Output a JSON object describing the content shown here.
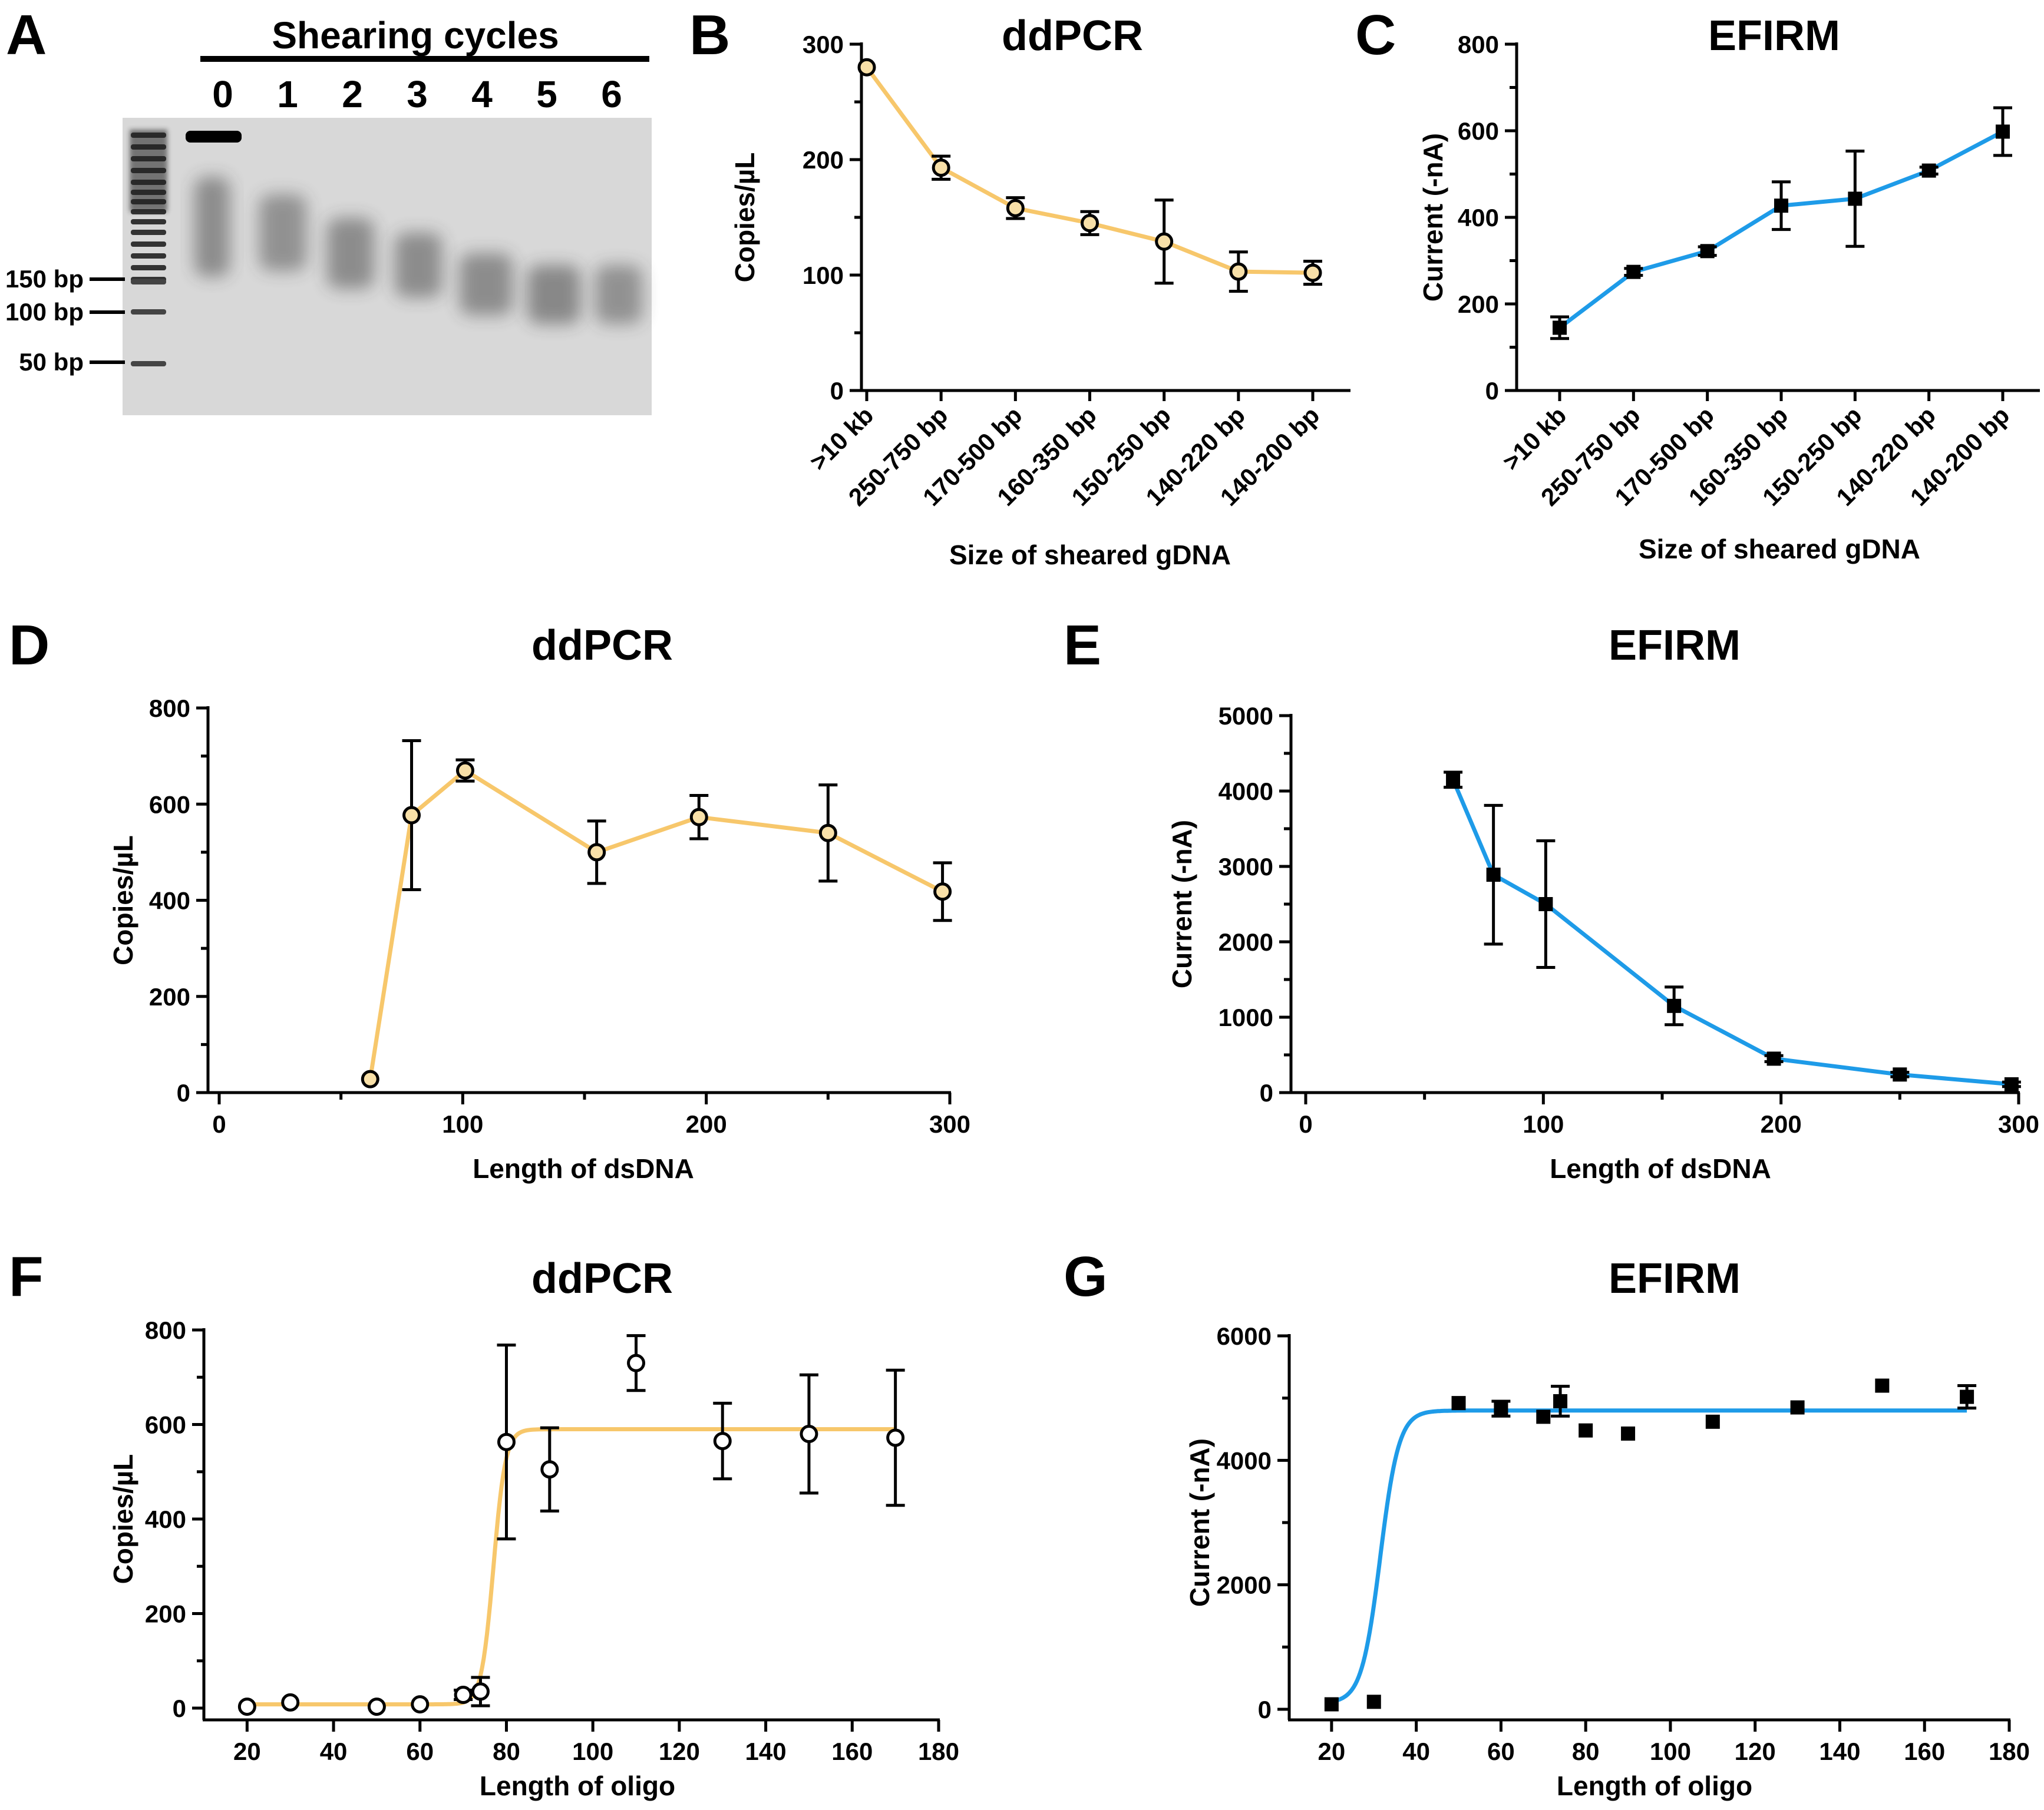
{
  "colors": {
    "orange": "#F7C76B",
    "blue": "#1E9BE8",
    "gel_bg": "#D8D8D8",
    "marker": "#000000"
  },
  "gel": {
    "label": "A",
    "header": "Shearing cycles",
    "lanes": [
      "0",
      "1",
      "2",
      "3",
      "4",
      "5",
      "6"
    ],
    "ladder_labels": [
      "150 bp",
      "100 bp",
      "50 bp"
    ]
  },
  "chart_data": [
    {
      "panel": "B",
      "type": "line",
      "title": "ddPCR",
      "categories": [
        ">10 kb",
        "250-750 bp",
        "170-500 bp",
        "160-350 bp",
        "150-250 bp",
        "140-220 bp",
        "140-200 bp"
      ],
      "values": [
        280,
        193,
        158,
        145,
        129,
        103,
        102
      ],
      "errors": [
        0,
        10,
        9,
        10,
        36,
        17,
        10
      ],
      "xlabel": "Size of sheared gDNA",
      "ylabel": "Copies/µL",
      "ylim": [
        0,
        300
      ],
      "yticks": [
        0,
        100,
        200,
        300
      ],
      "marker": "circle",
      "color": "#F7C76B"
    },
    {
      "panel": "C",
      "type": "line",
      "title": "EFIRM",
      "categories": [
        ">10 kb",
        "250-750 bp",
        "170-500 bp",
        "160-350 bp",
        "150-250 bp",
        "140-220 bp",
        "140-200 bp"
      ],
      "values": [
        145,
        274,
        322,
        427,
        443,
        508,
        598
      ],
      "errors": [
        25,
        8,
        10,
        55,
        110,
        8,
        55
      ],
      "xlabel": "Size of  sheared gDNA",
      "ylabel": "Current (-nA)",
      "ylim": [
        0,
        800
      ],
      "yticks": [
        0,
        200,
        400,
        600,
        800
      ],
      "marker": "square",
      "color": "#1E9BE8"
    },
    {
      "panel": "D",
      "type": "line",
      "title": "ddPCR",
      "x": [
        62,
        79,
        101,
        155,
        197,
        250,
        297
      ],
      "y": [
        28,
        577,
        670,
        500,
        573,
        540,
        418
      ],
      "errors": [
        0,
        155,
        22,
        65,
        45,
        100,
        60
      ],
      "xlabel": "Length of dsDNA",
      "ylabel": "Copies/µL",
      "xlim": [
        0,
        300
      ],
      "xticks": [
        0,
        100,
        200,
        300
      ],
      "ylim": [
        0,
        800
      ],
      "yticks": [
        0,
        200,
        400,
        600,
        800
      ],
      "marker": "circle",
      "color": "#F7C76B"
    },
    {
      "panel": "E",
      "type": "line",
      "title": "EFIRM",
      "x": [
        62,
        79,
        101,
        155,
        197,
        250,
        297
      ],
      "y": [
        4150,
        2890,
        2500,
        1150,
        450,
        240,
        110
      ],
      "errors": [
        100,
        920,
        840,
        250,
        40,
        30,
        30
      ],
      "xlabel": "Length of dsDNA",
      "ylabel": "Current (-nA)",
      "xlim": [
        0,
        300
      ],
      "xticks": [
        0,
        100,
        200,
        300
      ],
      "ylim": [
        0,
        5000
      ],
      "yticks": [
        0,
        1000,
        2000,
        3000,
        4000,
        5000
      ],
      "marker": "square",
      "color": "#1E9BE8"
    },
    {
      "panel": "F",
      "type": "scatter",
      "title": "ddPCR",
      "x": [
        20,
        30,
        50,
        60,
        70,
        74,
        80,
        90,
        110,
        130,
        150,
        170
      ],
      "y": [
        3,
        12,
        3,
        8,
        28,
        35,
        563,
        505,
        730,
        565,
        580,
        572
      ],
      "errors": [
        0,
        0,
        0,
        0,
        10,
        30,
        205,
        88,
        58,
        80,
        125,
        143
      ],
      "fit": {
        "type": "sigmoid",
        "bottom": 8,
        "top": 590,
        "x50": 77,
        "slope": 1.4
      },
      "xlabel": "Length of oligo",
      "ylabel": "Copies/µL",
      "xlim": [
        10,
        180
      ],
      "xticks": [
        20,
        40,
        60,
        80,
        100,
        120,
        140,
        160,
        180
      ],
      "ylim": [
        0,
        800
      ],
      "yticks": [
        0,
        200,
        400,
        600,
        800
      ],
      "marker": "circle",
      "color": "#F7C76B"
    },
    {
      "panel": "G",
      "type": "scatter",
      "title": "EFIRM",
      "x": [
        20,
        30,
        50,
        60,
        70,
        74,
        80,
        90,
        110,
        130,
        150,
        170
      ],
      "y": [
        80,
        120,
        4920,
        4830,
        4700,
        4950,
        4480,
        4430,
        4620,
        4850,
        5200,
        5020
      ],
      "errors": [
        0,
        0,
        0,
        120,
        0,
        240,
        0,
        0,
        0,
        0,
        0,
        180
      ],
      "fit": {
        "type": "sigmoid",
        "bottom": 100,
        "top": 4800,
        "x50": 31.5,
        "slope": 2.2
      },
      "xlabel": "Length of oligo",
      "ylabel": "Current (-nA)",
      "xlim": [
        10,
        180
      ],
      "xticks": [
        20,
        40,
        60,
        80,
        100,
        120,
        140,
        160,
        180
      ],
      "ylim": [
        0,
        6000
      ],
      "yticks": [
        0,
        2000,
        4000,
        6000
      ],
      "marker": "square",
      "color": "#1E9BE8"
    }
  ]
}
